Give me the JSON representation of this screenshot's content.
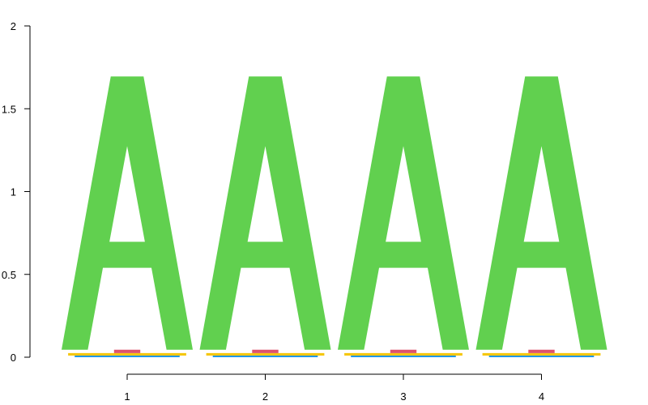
{
  "chart_data": {
    "type": "sequence-logo",
    "title": "",
    "xlabel": "",
    "ylabel": "",
    "ylim": [
      0,
      2
    ],
    "y_ticks": [
      0,
      0.5,
      1,
      1.5,
      2
    ],
    "y_tick_labels": [
      "0",
      "0.5",
      "1",
      "1.5",
      "2"
    ],
    "positions": [
      1,
      2,
      3,
      4
    ],
    "x_tick_labels": [
      "1",
      "2",
      "3",
      "4"
    ],
    "letters": [
      "A",
      "C",
      "G",
      "T"
    ],
    "letter_colors": {
      "A": "#61D04F",
      "C": "#2297E6",
      "G": "#F5C710",
      "T": "#DF536B"
    },
    "stacks": [
      [
        {
          "letter": "C",
          "height": 0.01
        },
        {
          "letter": "G",
          "height": 0.015
        },
        {
          "letter": "T",
          "height": 0.02
        },
        {
          "letter": "A",
          "height": 1.65
        }
      ],
      [
        {
          "letter": "C",
          "height": 0.01
        },
        {
          "letter": "G",
          "height": 0.015
        },
        {
          "letter": "T",
          "height": 0.02
        },
        {
          "letter": "A",
          "height": 1.65
        }
      ],
      [
        {
          "letter": "C",
          "height": 0.01
        },
        {
          "letter": "G",
          "height": 0.015
        },
        {
          "letter": "T",
          "height": 0.02
        },
        {
          "letter": "A",
          "height": 1.65
        }
      ],
      [
        {
          "letter": "C",
          "height": 0.01
        },
        {
          "letter": "G",
          "height": 0.015
        },
        {
          "letter": "T",
          "height": 0.02
        },
        {
          "letter": "A",
          "height": 1.65
        }
      ]
    ]
  }
}
